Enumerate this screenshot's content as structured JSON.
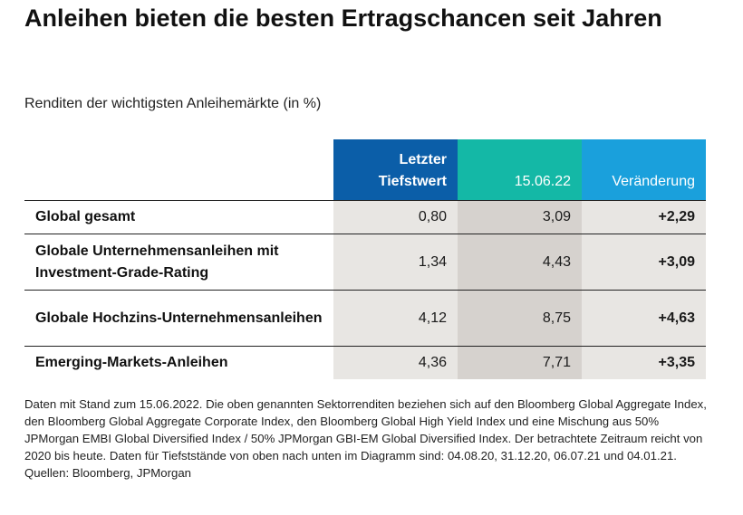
{
  "title": "Anleihen bieten die besten Ertragschancen seit Jahren",
  "subtitle": "Renditen der wichtigsten Anleihemärkte (in %)",
  "chart_data": {
    "type": "table",
    "columns": [
      "Letzter Tiefstwert",
      "15.06.22",
      "Veränderung"
    ],
    "rows": [
      {
        "label": "Global gesamt",
        "values": [
          "0,80",
          "3,09",
          "+2,29"
        ]
      },
      {
        "label": "Globale Unternehmensanleihen mit Investment-Grade-Rating",
        "values": [
          "1,34",
          "4,43",
          "+3,09"
        ]
      },
      {
        "label": "Globale Hochzins-Unternehmensanleihen",
        "values": [
          "4,12",
          "8,75",
          "+4,63"
        ]
      },
      {
        "label": "Emerging-Markets-Anleihen",
        "values": [
          "4,36",
          "7,71",
          "+3,35"
        ]
      }
    ],
    "header_colors": [
      "#0b5ea8",
      "#14b8a6",
      "#1aa0dc"
    ]
  },
  "footnote": "Daten mit Stand zum 15.06.2022. Die oben genannten Sektorrenditen beziehen sich auf den Bloomberg Global Aggregate Index, den Bloomberg Global Aggregate Corporate Index, den Bloomberg Global High Yield Index und eine Mischung aus 50% JPMorgan EMBI Global Diversified Index / 50% JPMorgan GBI-EM Global Diversified Index. Der betrachtete Zeitraum reicht von 2020 bis heute. Daten für Tiefststände von oben nach unten im Diagramm sind: 04.08.20, 31.12.20, 06.07.21 und 04.01.21. Quellen: Bloomberg, JPMorgan"
}
